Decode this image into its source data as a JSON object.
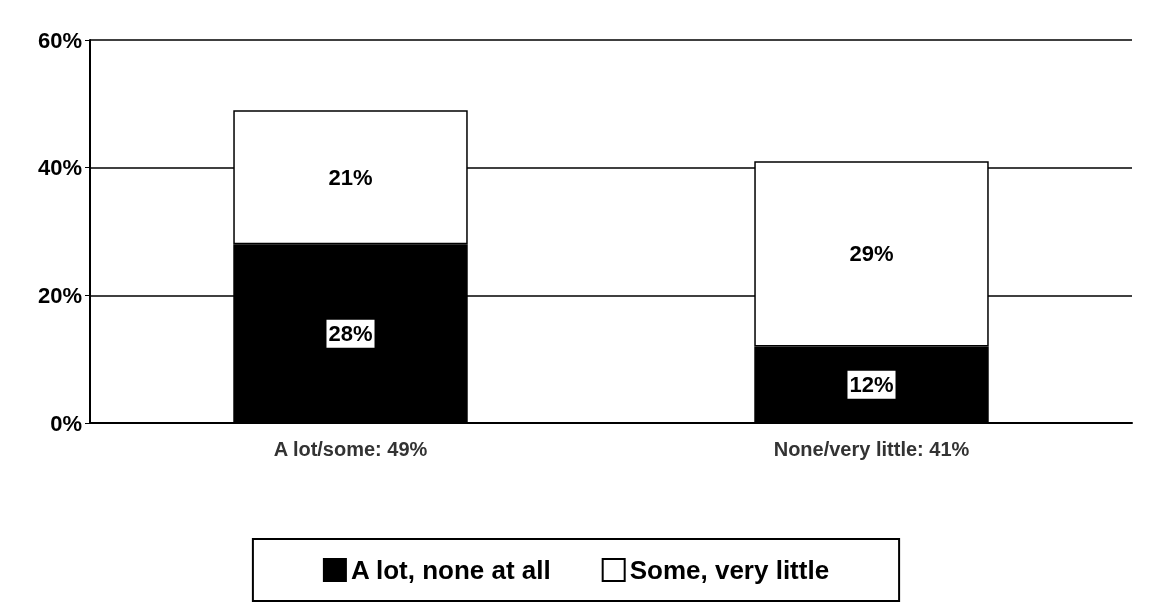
{
  "chart_data": {
    "type": "bar",
    "stacked": true,
    "categories": [
      "A lot/some: 49%",
      "None/very little: 41%"
    ],
    "series": [
      {
        "name": "A lot, none at all",
        "color": "#000000",
        "values": [
          28,
          12
        ],
        "value_labels": [
          "28%",
          "12%"
        ]
      },
      {
        "name": "Some, very little",
        "color": "#ffffff",
        "values": [
          21,
          29
        ],
        "value_labels": [
          "21%",
          "29%"
        ]
      }
    ],
    "ylim": [
      0,
      60
    ],
    "yticks": [
      {
        "value": 0,
        "label": "0%"
      },
      {
        "value": 20,
        "label": "20%"
      },
      {
        "value": 40,
        "label": "40%"
      },
      {
        "value": 60,
        "label": "60%"
      }
    ],
    "grid": "y",
    "legend": "bottom"
  }
}
